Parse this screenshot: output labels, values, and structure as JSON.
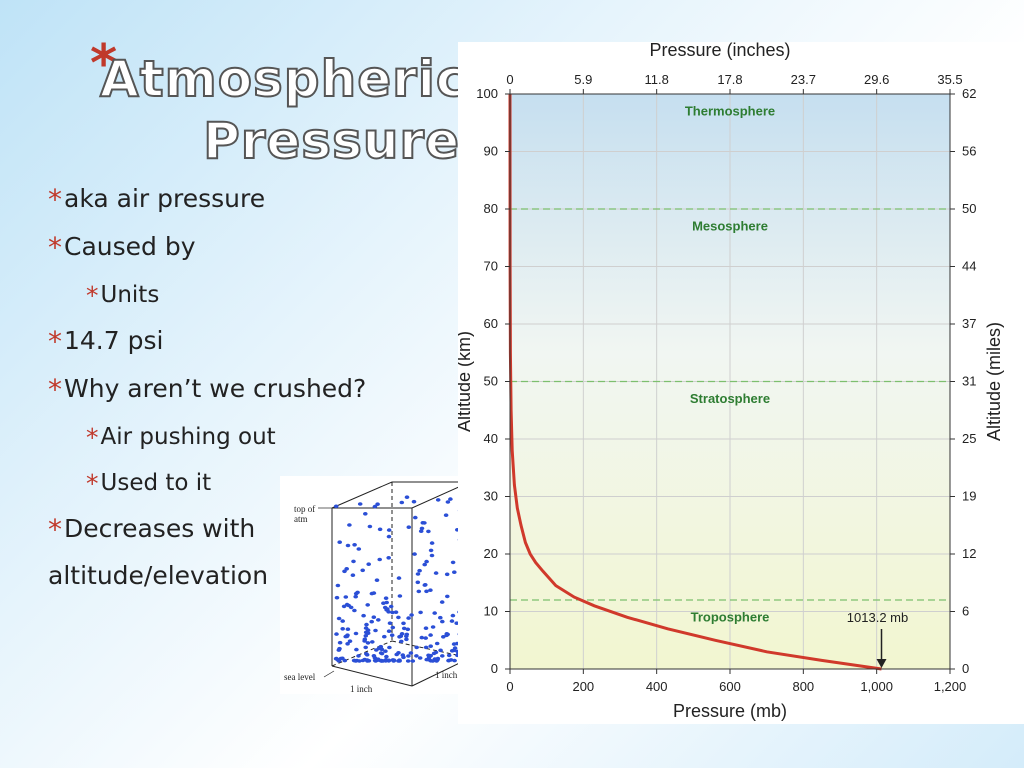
{
  "slide": {
    "title_line1": "Atmospheric",
    "title_line2": "Pressure",
    "bullets": [
      {
        "level": 1,
        "text": "aka air pressure"
      },
      {
        "level": 1,
        "text": "Caused by"
      },
      {
        "level": 2,
        "text": "Units"
      },
      {
        "level": 1,
        "text": "14.7 psi"
      },
      {
        "level": 1,
        "text": "Why aren’t we crushed?"
      },
      {
        "level": 2,
        "text": "Air pushing out"
      },
      {
        "level": 2,
        "text": "Used to it"
      },
      {
        "level": 1,
        "text": "Decreases with"
      },
      {
        "level": 0,
        "text": "altitude/elevation"
      }
    ],
    "colors": {
      "accent": "#c0392b",
      "curve": "#d0392b",
      "layer_text": "#2e7d32"
    }
  },
  "illustration": {
    "top_label_line1": "top of",
    "top_label_line2": "atm",
    "sea_label": "sea level",
    "width_label": "1 inch",
    "depth_label": "1 inch"
  },
  "chart_data": {
    "type": "line",
    "title": "",
    "xlabel": "Pressure (mb)",
    "xlabel_top": "Pressure (inches)",
    "ylabel": "Altitude (km)",
    "ylabel_right": "Altitude (miles)",
    "xlim": [
      0,
      1200
    ],
    "ylim": [
      0,
      100
    ],
    "x_ticks": [
      "0",
      "200",
      "400",
      "600",
      "800",
      "1,000",
      "1,200"
    ],
    "x_ticks_top": [
      "0",
      "5.9",
      "11.8",
      "17.8",
      "23.7",
      "29.6",
      "35.5"
    ],
    "y_ticks": [
      "0",
      "10",
      "20",
      "30",
      "40",
      "50",
      "60",
      "70",
      "80",
      "90",
      "100"
    ],
    "y_ticks_right": [
      {
        "value": "0",
        "km": 0
      },
      {
        "value": "6",
        "km": 10
      },
      {
        "value": "12",
        "km": 20
      },
      {
        "value": "19",
        "km": 30
      },
      {
        "value": "25",
        "km": 40
      },
      {
        "value": "31",
        "km": 50
      },
      {
        "value": "37",
        "km": 60
      },
      {
        "value": "44",
        "km": 70
      },
      {
        "value": "50",
        "km": 80
      },
      {
        "value": "56",
        "km": 90
      },
      {
        "value": "62",
        "km": 100
      }
    ],
    "grid": true,
    "series": [
      {
        "x": [
          1013.2,
          850,
          700,
          560,
          430,
          320,
          230,
          175,
          125,
          90,
          70,
          55,
          42,
          30,
          20,
          12,
          6,
          3,
          1,
          0.3,
          0
        ],
        "y": [
          0,
          1.5,
          3,
          5,
          7,
          9,
          11,
          12.5,
          14.5,
          17,
          18.5,
          20,
          22,
          25,
          28,
          32,
          38,
          45,
          55,
          70,
          100
        ]
      }
    ],
    "boundaries_km": [
      12,
      50,
      80
    ],
    "layers": [
      {
        "name": "Thermosphere",
        "km": 97
      },
      {
        "name": "Mesosphere",
        "km": 77
      },
      {
        "name": "Stratosphere",
        "km": 47
      },
      {
        "name": "Troposphere",
        "km": 9
      }
    ],
    "annotation": {
      "text": "1013.2 mb",
      "x": 1013.2,
      "y": 0
    }
  }
}
